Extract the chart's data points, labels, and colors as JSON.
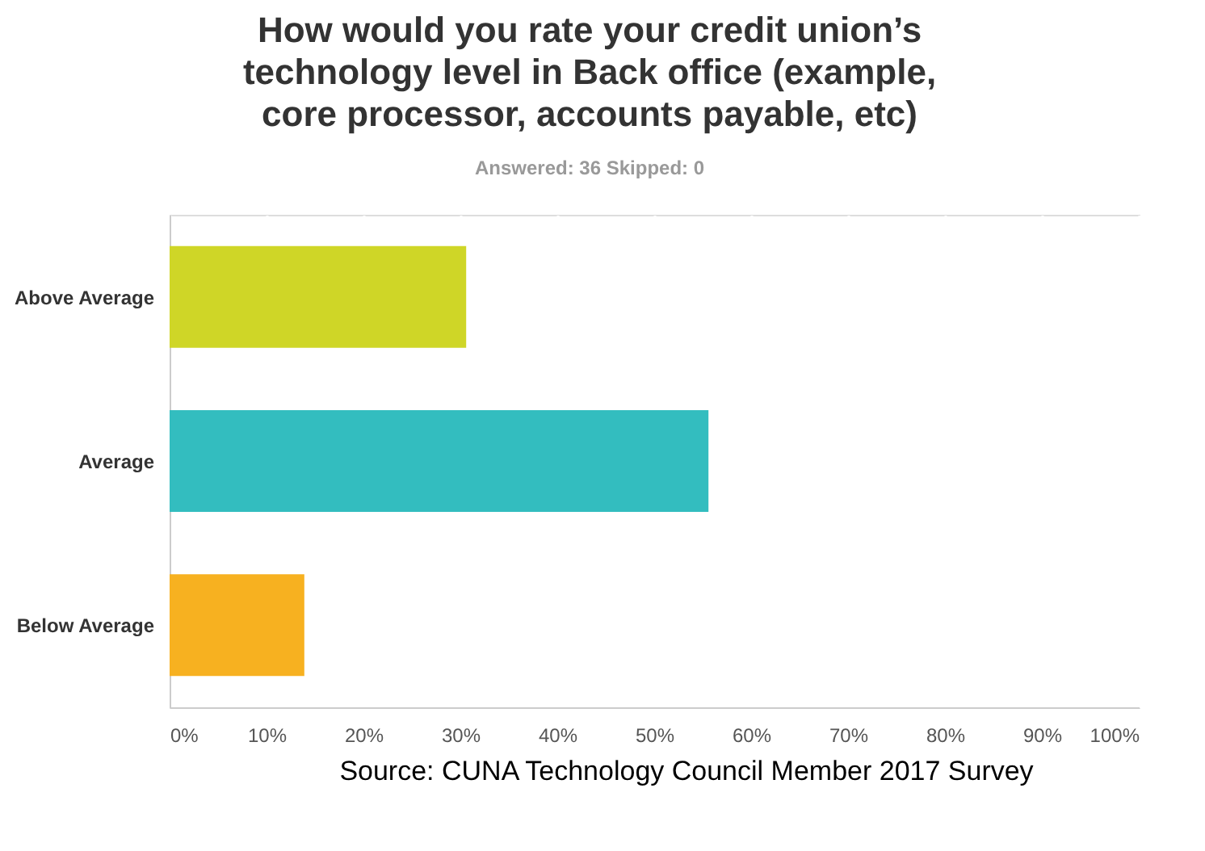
{
  "chart_data": {
    "type": "bar",
    "orientation": "horizontal",
    "title": "How would you rate your credit union’s technology level in Back office (example, core processor, accounts payable, etc)",
    "subtitle": "Answered: 36    Skipped: 0",
    "categories": [
      "Above Average",
      "Average",
      "Below Average"
    ],
    "values": [
      30.6,
      55.6,
      13.9
    ],
    "colors": [
      "#cfd627",
      "#33bdbf",
      "#f7b120"
    ],
    "xlim": [
      0,
      100
    ],
    "xticks": [
      {
        "value": 0,
        "label": "0%"
      },
      {
        "value": 10,
        "label": "10%"
      },
      {
        "value": 20,
        "label": "20%"
      },
      {
        "value": 30,
        "label": "30%"
      },
      {
        "value": 40,
        "label": "40%"
      },
      {
        "value": 50,
        "label": "50%"
      },
      {
        "value": 60,
        "label": "60%"
      },
      {
        "value": 70,
        "label": "70%"
      },
      {
        "value": 80,
        "label": "80%"
      },
      {
        "value": 90,
        "label": "90%"
      },
      {
        "value": 100,
        "label": "100%"
      }
    ],
    "grid": "x",
    "annotations": [
      "Source: CUNA Technology Council Member 2017 Survey"
    ]
  }
}
